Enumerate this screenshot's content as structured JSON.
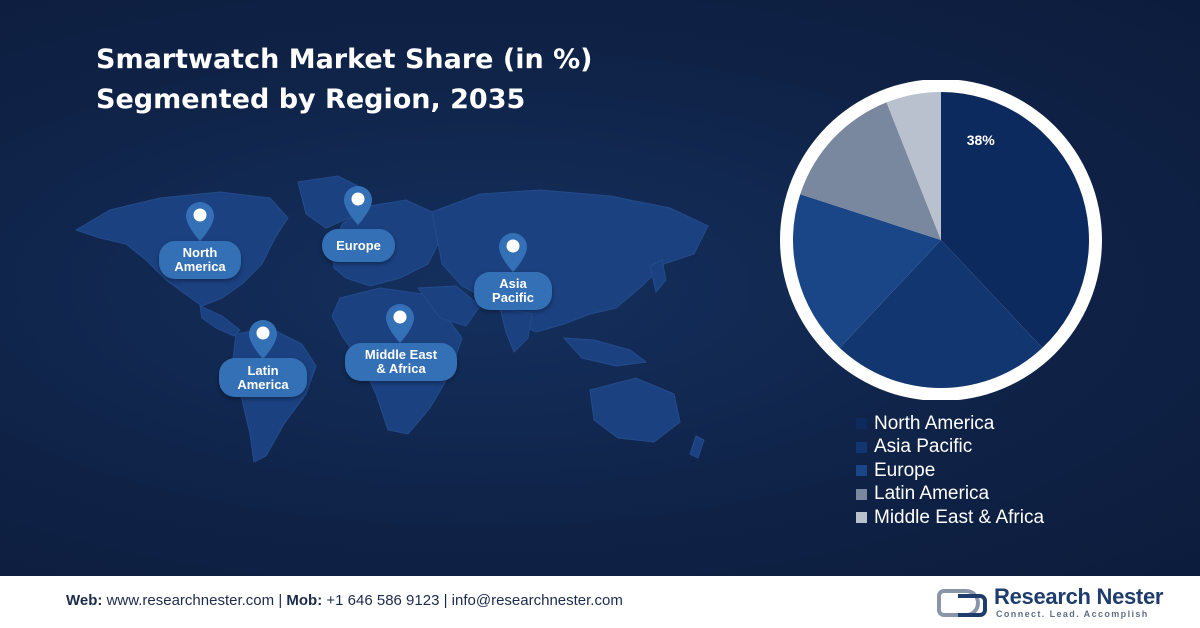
{
  "title": {
    "line1": "Smartwatch Market Share (in %)",
    "line2": "Segmented by Region, 2035"
  },
  "map": {
    "labels": [
      {
        "id": "north-america",
        "text": "North\nAmerica"
      },
      {
        "id": "europe",
        "text": "Europe"
      },
      {
        "id": "asia-pacific",
        "text": "Asia\nPacific"
      },
      {
        "id": "latin-america",
        "text": "Latin\nAmerica"
      },
      {
        "id": "middle-east-africa",
        "text": "Middle East\n& Africa"
      }
    ],
    "pin_icon": "map-pin-icon"
  },
  "chart_data": {
    "type": "pie",
    "title": "Smartwatch Market Share (in %) Segmented by Region, 2035",
    "categories": [
      "North America",
      "Asia Pacific",
      "Europe",
      "Latin America",
      "Middle East & Africa"
    ],
    "values": [
      38,
      24,
      18,
      14,
      6
    ],
    "labeled_values": [
      {
        "category": "North America",
        "label": "38%"
      }
    ],
    "colors": [
      "#0d2a5e",
      "#123670",
      "#1a4688",
      "#7a889f",
      "#b9c1cf"
    ],
    "legend_position": "bottom",
    "start": "top, clockwise"
  },
  "footer": {
    "web_label": "Web:",
    "web_value": "www.researchnester.com",
    "mob_label": "Mob:",
    "mob_value": "+1 646 586 9123",
    "email": "info@researchnester.com",
    "separator": "|",
    "logo": {
      "name": "Research Nester",
      "tagline": "Connect. Lead. Accomplish"
    }
  },
  "colors": {
    "background": "#0f2246",
    "map_land": "#1b4180",
    "label_pill": "#3470b5",
    "pie_border": "#ffffff",
    "footer_bg": "#ffffff"
  }
}
